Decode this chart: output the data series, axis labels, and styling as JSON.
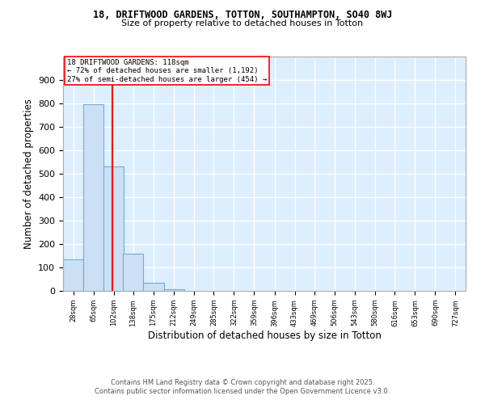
{
  "title1": "18, DRIFTWOOD GARDENS, TOTTON, SOUTHAMPTON, SO40 8WJ",
  "title2": "Size of property relative to detached houses in Totton",
  "xlabel": "Distribution of detached houses by size in Totton",
  "ylabel": "Number of detached properties",
  "bar_edges": [
    28,
    65,
    102,
    138,
    175,
    212,
    249,
    285,
    322,
    359,
    396,
    433,
    469,
    506,
    543,
    580,
    616,
    653,
    690,
    727,
    764
  ],
  "bar_heights": [
    135,
    795,
    530,
    158,
    35,
    8,
    0,
    0,
    0,
    0,
    0,
    0,
    0,
    0,
    0,
    0,
    0,
    0,
    0,
    0
  ],
  "bar_face_color": "#cce0f5",
  "bar_edge_color": "#6baed6",
  "vline_x": 118,
  "vline_color": "red",
  "annotation_text": "18 DRIFTWOOD GARDENS: 118sqm\n← 72% of detached houses are smaller (1,192)\n27% of semi-detached houses are larger (454) →",
  "annotation_box_color": "white",
  "annotation_box_edge": "red",
  "ylim": [
    0,
    1000
  ],
  "yticks": [
    0,
    100,
    200,
    300,
    400,
    500,
    600,
    700,
    800,
    900,
    1000
  ],
  "background_color": "#ddeeff",
  "grid_color": "white",
  "footer1": "Contains HM Land Registry data © Crown copyright and database right 2025.",
  "footer2": "Contains public sector information licensed under the Open Government Licence v3.0."
}
